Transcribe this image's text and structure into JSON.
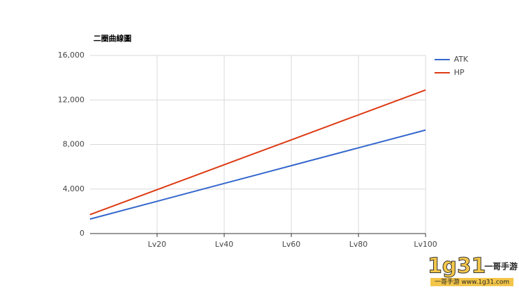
{
  "chart_data": {
    "type": "line",
    "title": "二圈曲線圖",
    "categories": [
      null,
      "Lv20",
      "Lv40",
      "Lv60",
      "Lv80",
      "Lv100"
    ],
    "series": [
      {
        "name": "ATK",
        "color": "#3366cc",
        "values": [
          1300,
          2900,
          4500,
          6100,
          7700,
          9300
        ]
      },
      {
        "name": "HP",
        "color": "#dc3912",
        "values": [
          1700,
          3940,
          6180,
          8420,
          10660,
          12900
        ]
      }
    ],
    "ylim": [
      0,
      16000
    ],
    "yticks": [
      0,
      {
        "value": 4000,
        "label": "4,000"
      },
      {
        "value": 8000,
        "label": "8,000"
      },
      {
        "value": 12000,
        "label": "12,000"
      },
      {
        "value": 16000,
        "label": "16,000"
      }
    ],
    "grid": true,
    "legend": "right"
  },
  "watermark": {
    "logo": "1g31",
    "brand": "一哥手游",
    "site": "一哥手游 www.1g31.com"
  }
}
